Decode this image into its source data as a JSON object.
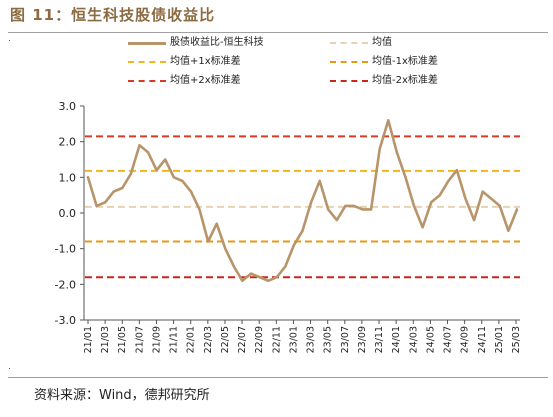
{
  "header": {
    "title": "图 11：恒生科技股债收益比"
  },
  "footer": {
    "source": "资料来源：Wind，德邦研究所"
  },
  "colors": {
    "series": "#b8946a",
    "mean": "#e8d2b4",
    "sd1": "#f2b51e",
    "sd1_neg": "#e69a10",
    "sd2": "#d93a25",
    "sd2_neg": "#c9271a",
    "title": "#8b6b42"
  },
  "legend": [
    {
      "label": "股债收益比-恒生科技",
      "style": "solid",
      "color": "#b8946a"
    },
    {
      "label": "均值",
      "style": "dashed",
      "color": "#e8d2b4"
    },
    {
      "label": "均值+1x标准差",
      "style": "dashed",
      "color": "#f2b51e"
    },
    {
      "label": "均值-1x标准差",
      "style": "dashed",
      "color": "#e69a10"
    },
    {
      "label": "均值+2x标准差",
      "style": "dashed",
      "color": "#d93a25"
    },
    {
      "label": "均值-2x标准差",
      "style": "dashed",
      "color": "#c9271a"
    }
  ],
  "chart_data": {
    "type": "line",
    "ylim": [
      -3.0,
      3.0
    ],
    "yticks": [
      "3.0",
      "2.0",
      "1.0",
      "0.0",
      "-1.0",
      "-2.0",
      "-3.0"
    ],
    "xticks": [
      "21/01",
      "21/03",
      "21/05",
      "21/07",
      "21/09",
      "21/11",
      "22/01",
      "22/03",
      "22/05",
      "22/07",
      "22/09",
      "22/11",
      "23/01",
      "23/03",
      "23/05",
      "23/07",
      "23/09",
      "23/11",
      "24/01",
      "24/03",
      "24/05",
      "24/07",
      "24/09",
      "24/11",
      "25/01",
      "25/03"
    ],
    "reference_lines": [
      {
        "name": "均值+2x标准差",
        "value": 2.15
      },
      {
        "name": "均值+1x标准差",
        "value": 1.18
      },
      {
        "name": "均值",
        "value": 0.17
      },
      {
        "name": "均值-1x标准差",
        "value": -0.8
      },
      {
        "name": "均值-2x标准差",
        "value": -1.8
      }
    ],
    "series": [
      {
        "name": "股债收益比-恒生科技",
        "x": [
          "21/01",
          "21/02",
          "21/03",
          "21/04",
          "21/05",
          "21/06",
          "21/07",
          "21/08",
          "21/09",
          "21/10",
          "21/11",
          "21/12",
          "22/01",
          "22/02",
          "22/03",
          "22/04",
          "22/05",
          "22/06",
          "22/07",
          "22/08",
          "22/09",
          "22/10",
          "22/11",
          "22/12",
          "23/01",
          "23/02",
          "23/03",
          "23/04",
          "23/05",
          "23/06",
          "23/07",
          "23/08",
          "23/09",
          "23/10",
          "23/11",
          "23/12",
          "24/01",
          "24/02",
          "24/03",
          "24/04",
          "24/05",
          "24/06",
          "24/07",
          "24/08",
          "24/09",
          "24/10",
          "24/11",
          "24/12",
          "25/01",
          "25/02",
          "25/03"
        ],
        "y": [
          1.0,
          0.2,
          0.3,
          0.6,
          0.7,
          1.1,
          1.9,
          1.7,
          1.2,
          1.5,
          1.0,
          0.9,
          0.6,
          0.1,
          -0.8,
          -0.3,
          -1.0,
          -1.5,
          -1.9,
          -1.7,
          -1.8,
          -1.9,
          -1.8,
          -1.5,
          -0.9,
          -0.5,
          0.3,
          0.9,
          0.1,
          -0.2,
          0.2,
          0.2,
          0.1,
          0.1,
          1.8,
          2.6,
          1.7,
          1.0,
          0.2,
          -0.4,
          0.3,
          0.5,
          0.9,
          1.2,
          0.4,
          -0.2,
          0.6,
          0.4,
          0.2,
          -0.5,
          0.1
        ]
      }
    ]
  }
}
